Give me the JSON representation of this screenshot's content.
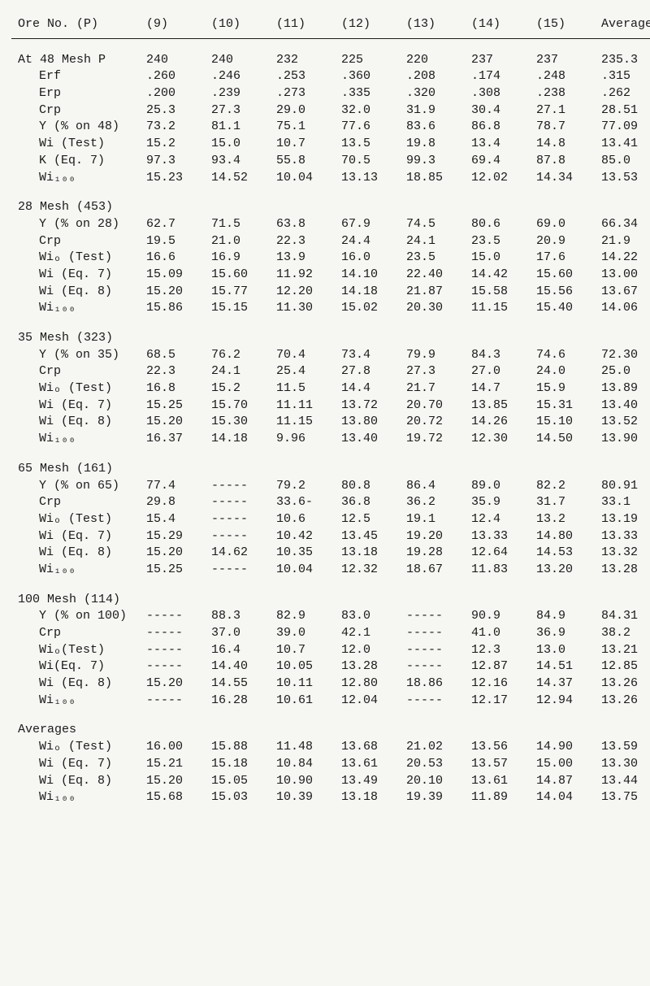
{
  "header": {
    "label": "Ore No. (P)",
    "cols": [
      "(9)",
      "(10)",
      "(11)",
      "(12)",
      "(13)",
      "(14)",
      "(15)",
      "Average"
    ]
  },
  "sections": [
    {
      "title": "At 48 Mesh P",
      "title_vals": [
        "240",
        "240",
        "232",
        "225",
        "220",
        "237",
        "237",
        "235.3"
      ],
      "rows": [
        {
          "label": "Erf",
          "vals": [
            ".260",
            ".246",
            ".253",
            ".360",
            ".208",
            ".174",
            ".248",
            ".315"
          ]
        },
        {
          "label": "Erp",
          "vals": [
            ".200",
            ".239",
            ".273",
            ".335",
            ".320",
            ".308",
            ".238",
            ".262"
          ]
        },
        {
          "label": "Crp",
          "vals": [
            "25.3",
            "27.3",
            "29.0",
            "32.0",
            "31.9",
            "30.4",
            "27.1",
            "28.51"
          ]
        },
        {
          "label": "Y (% on 48)",
          "vals": [
            "73.2",
            "81.1",
            "75.1",
            "77.6",
            "83.6",
            "86.8",
            "78.7",
            "77.09"
          ]
        },
        {
          "label": "Wi  (Test)",
          "vals": [
            "15.2",
            "15.0",
            "10.7",
            "13.5",
            "19.8",
            "13.4",
            "14.8",
            "13.41"
          ]
        },
        {
          "label": "K (Eq. 7)",
          "vals": [
            "97.3",
            "93.4",
            "55.8",
            "70.5",
            "99.3",
            "69.4",
            "87.8",
            "85.0"
          ]
        },
        {
          "label": "Wi₁₀₀",
          "vals": [
            "15.23",
            "14.52",
            "10.04",
            "13.13",
            "18.85",
            "12.02",
            "14.34",
            "13.53"
          ]
        }
      ]
    },
    {
      "title": "28 Mesh (453)",
      "title_vals": [
        "",
        "",
        "",
        "",
        "",
        "",
        "",
        ""
      ],
      "rows": [
        {
          "label": "Y (% on 28)",
          "vals": [
            "62.7",
            "71.5",
            "63.8",
            "67.9",
            "74.5",
            "80.6",
            "69.0",
            "66.34"
          ]
        },
        {
          "label": "Crp",
          "vals": [
            "19.5",
            "21.0",
            "22.3",
            "24.4",
            "24.1",
            "23.5",
            "20.9",
            "21.9"
          ]
        },
        {
          "label": "Wiₒ (Test)",
          "vals": [
            "16.6",
            "16.9",
            "13.9",
            "16.0",
            "23.5",
            "15.0",
            "17.6",
            "14.22"
          ]
        },
        {
          "label": "Wi (Eq. 7)",
          "vals": [
            "15.09",
            "15.60",
            "11.92",
            "14.10",
            "22.40",
            "14.42",
            "15.60",
            "13.00"
          ]
        },
        {
          "label": "Wi (Eq. 8)",
          "vals": [
            "15.20",
            "15.77",
            "12.20",
            "14.18",
            "21.87",
            "15.58",
            "15.56",
            "13.67"
          ]
        },
        {
          "label": "Wi₁₀₀",
          "vals": [
            "15.86",
            "15.15",
            "11.30",
            "15.02",
            "20.30",
            "11.15",
            "15.40",
            "14.06"
          ]
        }
      ]
    },
    {
      "title": "35 Mesh (323)",
      "title_vals": [
        "",
        "",
        "",
        "",
        "",
        "",
        "",
        ""
      ],
      "rows": [
        {
          "label": "Y (% on 35)",
          "vals": [
            "68.5",
            "76.2",
            "70.4",
            "73.4",
            "79.9",
            "84.3",
            "74.6",
            "72.30"
          ]
        },
        {
          "label": "Crp",
          "vals": [
            "22.3",
            "24.1",
            "25.4",
            "27.8",
            "27.3",
            "27.0",
            "24.0",
            "25.0"
          ]
        },
        {
          "label": "Wiₒ (Test)",
          "vals": [
            "16.8",
            "15.2",
            "11.5",
            "14.4",
            "21.7",
            "14.7",
            "15.9",
            "13.89"
          ]
        },
        {
          "label": "Wi (Eq. 7)",
          "vals": [
            "15.25",
            "15.70",
            "11.11",
            "13.72",
            "20.70",
            "13.85",
            "15.31",
            "13.40"
          ]
        },
        {
          "label": "Wi (Eq. 8)",
          "vals": [
            "15.20",
            "15.30",
            "11.15",
            "13.80",
            "20.72",
            "14.26",
            "15.10",
            "13.52"
          ]
        },
        {
          "label": "Wi₁₀₀",
          "vals": [
            "16.37",
            "14.18",
            "9.96",
            "13.40",
            "19.72",
            "12.30",
            "14.50",
            "13.90"
          ]
        }
      ]
    },
    {
      "title": "65 Mesh (161)",
      "title_vals": [
        "",
        "",
        "",
        "",
        "",
        "",
        "",
        ""
      ],
      "rows": [
        {
          "label": "Y (% on 65)",
          "vals": [
            "77.4",
            "-----",
            "79.2",
            "80.8",
            "86.4",
            "89.0",
            "82.2",
            "80.91"
          ]
        },
        {
          "label": "Crp",
          "vals": [
            "29.8",
            "-----",
            "33.6-",
            "36.8",
            "36.2",
            "35.9",
            "31.7",
            "33.1"
          ]
        },
        {
          "label": "Wiₒ (Test)",
          "vals": [
            "15.4",
            "-----",
            "10.6",
            "12.5",
            "19.1",
            "12.4",
            "13.2",
            "13.19"
          ]
        },
        {
          "label": "Wi (Eq. 7)",
          "vals": [
            "15.29",
            "-----",
            "10.42",
            "13.45",
            "19.20",
            "13.33",
            "14.80",
            "13.33"
          ]
        },
        {
          "label": "Wi (Eq. 8)",
          "vals": [
            "15.20",
            "14.62",
            "10.35",
            "13.18",
            "19.28",
            "12.64",
            "14.53",
            "13.32"
          ]
        },
        {
          "label": "Wi₁₀₀",
          "vals": [
            "15.25",
            "-----",
            "10.04",
            "12.32",
            "18.67",
            "11.83",
            "13.20",
            "13.28"
          ]
        }
      ]
    },
    {
      "title": "100 Mesh (114)",
      "title_vals": [
        "",
        "",
        "",
        "",
        "",
        "",
        "",
        ""
      ],
      "rows": [
        {
          "label": "Y (% on 100)",
          "vals": [
            "-----",
            "88.3",
            "82.9",
            "83.0",
            "-----",
            "90.9",
            "84.9",
            "84.31"
          ]
        },
        {
          "label": "Crp",
          "vals": [
            "-----",
            "37.0",
            "39.0",
            "42.1",
            "-----",
            "41.0",
            "36.9",
            "38.2"
          ]
        },
        {
          "label": "Wiₒ(Test)",
          "vals": [
            "-----",
            "16.4",
            "10.7",
            "12.0",
            "-----",
            "12.3",
            "13.0",
            "13.21"
          ]
        },
        {
          "label": "Wi(Eq. 7)",
          "vals": [
            "-----",
            "14.40",
            "10.05",
            "13.28",
            "-----",
            "12.87",
            "14.51",
            "12.85"
          ]
        },
        {
          "label": "Wi (Eq. 8)",
          "vals": [
            "15.20",
            "14.55",
            "10.11",
            "12.80",
            "18.86",
            "12.16",
            "14.37",
            "13.26"
          ]
        },
        {
          "label": "Wi₁₀₀",
          "vals": [
            "-----",
            "16.28",
            "10.61",
            "12.04",
            "-----",
            "12.17",
            "12.94",
            "13.26"
          ]
        }
      ]
    },
    {
      "title": "Averages",
      "title_vals": [
        "",
        "",
        "",
        "",
        "",
        "",
        "",
        ""
      ],
      "rows": [
        {
          "label": "Wiₒ (Test)",
          "vals": [
            "16.00",
            "15.88",
            "11.48",
            "13.68",
            "21.02",
            "13.56",
            "14.90",
            "13.59"
          ]
        },
        {
          "label": "Wi (Eq. 7)",
          "vals": [
            "15.21",
            "15.18",
            "10.84",
            "13.61",
            "20.53",
            "13.57",
            "15.00",
            "13.30"
          ]
        },
        {
          "label": "Wi (Eq. 8)",
          "vals": [
            "15.20",
            "15.05",
            "10.90",
            "13.49",
            "20.10",
            "13.61",
            "14.87",
            "13.44"
          ]
        },
        {
          "label": "Wi₁₀₀",
          "vals": [
            "15.68",
            "15.03",
            "10.39",
            "13.18",
            "19.39",
            "11.89",
            "14.04",
            "13.75"
          ]
        }
      ]
    }
  ]
}
